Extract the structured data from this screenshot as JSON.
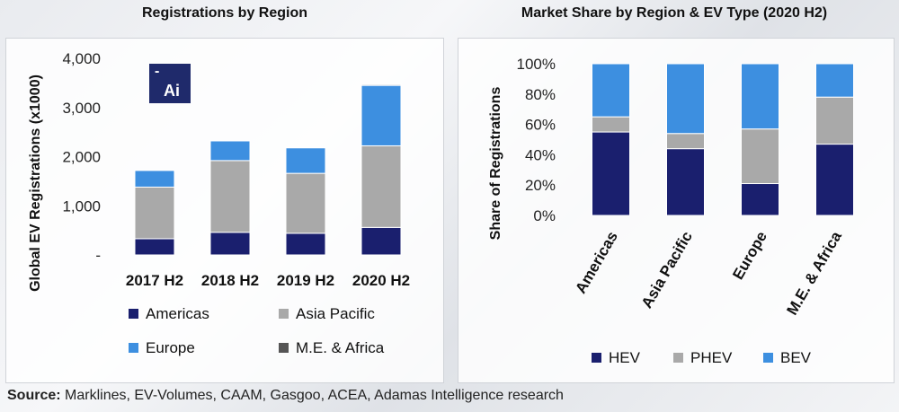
{
  "colors": {
    "americas": "#1a1f6e",
    "asia_pacific": "#a9a9a9",
    "europe": "#3d8fe0",
    "me_africa": "#555555",
    "hev": "#1a1f6e",
    "phev": "#a9a9a9",
    "bev": "#3d8fe0"
  },
  "logo": {
    "mark": "-",
    "text": "Ai",
    "icon": "adamas-logo-icon"
  },
  "source": {
    "label": "Source:",
    "text": " Marklines, EV-Volumes, CAAM, Gasgoo, ACEA, Adamas Intelligence research"
  },
  "chart_data": [
    {
      "type": "bar",
      "stacked": true,
      "title": "Registrations by Region",
      "ylabel": "Global EV Registrations (x1000)",
      "xlabel": "",
      "categories": [
        "2017 H2",
        "2018 H2",
        "2019 H2",
        "2020 H2"
      ],
      "ylim": [
        0,
        4000
      ],
      "yticks": [
        0,
        1000,
        2000,
        3000,
        4000
      ],
      "ytick_labels": [
        "-",
        "1,000",
        "2,000",
        "3,000",
        "4,000"
      ],
      "grid": false,
      "legend_position": "bottom",
      "series": [
        {
          "name": "Americas",
          "values": [
            330,
            460,
            440,
            560
          ]
        },
        {
          "name": "Asia Pacific",
          "values": [
            1050,
            1460,
            1220,
            1660
          ]
        },
        {
          "name": "Europe",
          "values": [
            340,
            400,
            520,
            1230
          ]
        },
        {
          "name": "M.E. & Africa",
          "values": [
            10,
            10,
            10,
            20
          ]
        }
      ]
    },
    {
      "type": "bar",
      "stacked": true,
      "title": "Market Share by Region & EV Type (2020 H2)",
      "ylabel": "Share of Registrations",
      "xlabel": "",
      "categories": [
        "Americas",
        "Asia Pacific",
        "Europe",
        "M.E. & Africa"
      ],
      "ylim": [
        0,
        100
      ],
      "yticks": [
        0,
        20,
        40,
        60,
        80,
        100
      ],
      "ytick_labels": [
        "0%",
        "20%",
        "40%",
        "60%",
        "80%",
        "100%"
      ],
      "grid": false,
      "legend_position": "bottom",
      "series": [
        {
          "name": "HEV",
          "values": [
            55,
            44,
            21,
            47
          ]
        },
        {
          "name": "PHEV",
          "values": [
            10,
            10,
            36,
            31
          ]
        },
        {
          "name": "BEV",
          "values": [
            35,
            46,
            43,
            22
          ]
        }
      ]
    }
  ]
}
